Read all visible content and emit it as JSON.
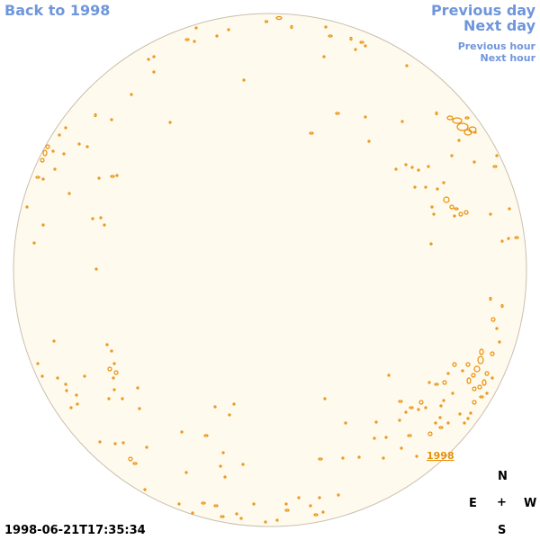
{
  "nav": {
    "back_label": "Back to 1998",
    "prev_day_label": "Previous day",
    "next_day_label": "Next day",
    "prev_hour_label": "Previous hour",
    "next_hour_label": "Next hour"
  },
  "solar_disk": {
    "region_label": "1998",
    "fill_color": "#fffaee",
    "limb_color": "#c9bfae",
    "contour_color": "#e8900a"
  },
  "compass": {
    "north": "N",
    "east": "E",
    "center": "+",
    "west": "W",
    "south": "S"
  },
  "timestamp": "1998-06-21T17:35:34"
}
